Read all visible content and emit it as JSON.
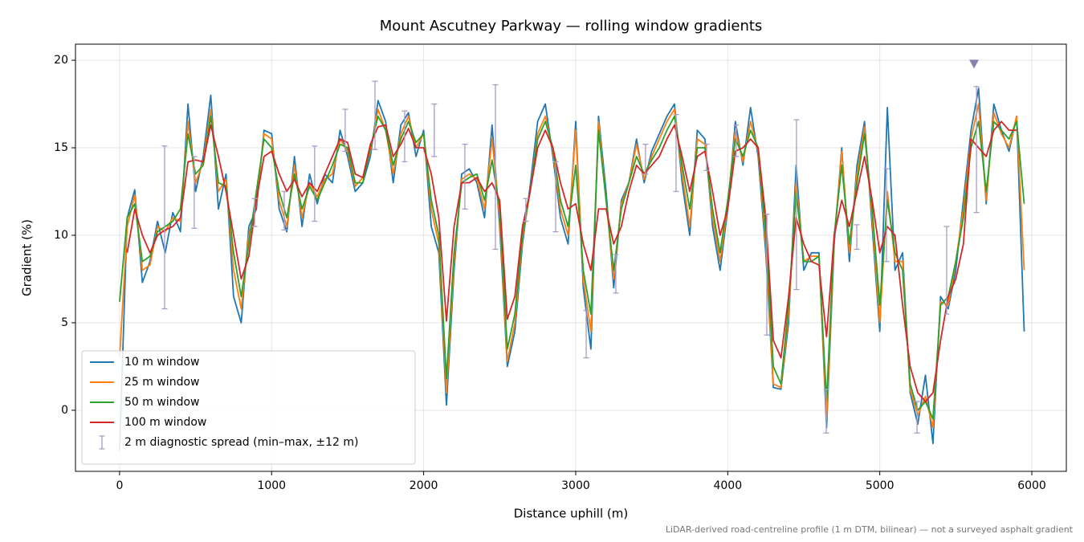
{
  "chart_data": {
    "type": "line",
    "title": "Mount Ascutney Parkway — rolling window gradients",
    "xlabel": "Distance uphill (m)",
    "ylabel": "Gradient (%)",
    "note": "LiDAR-derived road-centreline profile (1 m DTM, bilinear) — not a surveyed asphalt gradient",
    "xlim": [
      -290,
      6227
    ],
    "ylim": [
      -3.49,
      20.92
    ],
    "xticks": [
      0,
      1000,
      2000,
      3000,
      4000,
      5000,
      6000
    ],
    "yticks": [
      0,
      5,
      10,
      15,
      20
    ],
    "grid": true,
    "legend": "lower left",
    "x": [
      0,
      50,
      100,
      150,
      200,
      250,
      300,
      350,
      400,
      450,
      500,
      550,
      600,
      650,
      700,
      750,
      800,
      850,
      900,
      950,
      1000,
      1050,
      1100,
      1150,
      1200,
      1250,
      1300,
      1350,
      1400,
      1450,
      1500,
      1550,
      1600,
      1650,
      1700,
      1750,
      1800,
      1850,
      1900,
      1950,
      2000,
      2050,
      2100,
      2150,
      2200,
      2250,
      2300,
      2350,
      2400,
      2450,
      2500,
      2550,
      2600,
      2650,
      2700,
      2750,
      2800,
      2850,
      2900,
      2950,
      3000,
      3050,
      3100,
      3150,
      3200,
      3250,
      3300,
      3350,
      3400,
      3450,
      3500,
      3550,
      3600,
      3650,
      3700,
      3750,
      3800,
      3850,
      3900,
      3950,
      4000,
      4050,
      4100,
      4150,
      4200,
      4250,
      4300,
      4350,
      4400,
      4450,
      4500,
      4550,
      4600,
      4650,
      4700,
      4750,
      4800,
      4850,
      4900,
      4950,
      5000,
      5050,
      5100,
      5150,
      5200,
      5250,
      5300,
      5350,
      5400,
      5450,
      5500,
      5550,
      5600,
      5650,
      5700,
      5750,
      5800,
      5850,
      5900,
      5950
    ],
    "series": [
      {
        "name": "10 m window",
        "color": "#1f77b4",
        "values": [
          -2.3,
          11.0,
          12.6,
          7.3,
          8.5,
          10.8,
          9.0,
          11.3,
          10.2,
          17.5,
          12.5,
          14.5,
          18.0,
          11.5,
          13.5,
          6.5,
          5.0,
          10.5,
          11.5,
          16.0,
          15.8,
          11.5,
          10.2,
          14.5,
          10.5,
          13.5,
          11.8,
          13.5,
          13.0,
          16.0,
          14.5,
          12.5,
          13.0,
          14.5,
          17.7,
          16.5,
          13.0,
          16.3,
          17.0,
          14.5,
          16.0,
          10.5,
          9.0,
          0.3,
          8.0,
          13.5,
          13.8,
          13.0,
          11.0,
          16.3,
          10.5,
          2.5,
          4.5,
          9.5,
          12.8,
          16.5,
          17.5,
          14.5,
          11.0,
          9.5,
          16.5,
          7.0,
          3.5,
          16.8,
          12.5,
          7.0,
          12.0,
          13.0,
          15.5,
          13.0,
          14.8,
          15.8,
          16.8,
          17.5,
          13.0,
          10.0,
          16.0,
          15.5,
          10.5,
          8.0,
          11.5,
          16.5,
          14.0,
          17.3,
          14.5,
          9.0,
          1.3,
          1.2,
          5.0,
          14.0,
          8.0,
          9.0,
          9.0,
          -1.0,
          9.5,
          15.0,
          8.5,
          14.0,
          16.5,
          10.5,
          4.5,
          17.3,
          8.0,
          9.0,
          1.0,
          -0.8,
          2.0,
          -1.9,
          6.5,
          5.8,
          8.0,
          12.0,
          16.0,
          18.4,
          11.8,
          17.5,
          16.0,
          14.8,
          16.8,
          4.5
        ]
      },
      {
        "name": "25 m window",
        "color": "#ff7f0e",
        "values": [
          3.0,
          10.5,
          12.3,
          8.0,
          8.3,
          10.5,
          10.2,
          11.0,
          10.8,
          16.5,
          13.0,
          14.2,
          17.2,
          12.5,
          13.2,
          8.0,
          5.8,
          10.0,
          11.8,
          15.8,
          15.5,
          12.0,
          10.5,
          14.0,
          11.0,
          13.0,
          12.2,
          13.2,
          13.5,
          15.5,
          14.8,
          12.8,
          13.3,
          14.8,
          17.2,
          16.0,
          13.5,
          15.8,
          16.8,
          15.0,
          15.8,
          11.5,
          9.5,
          1.0,
          8.5,
          13.2,
          13.5,
          13.2,
          11.5,
          15.5,
          11.0,
          2.8,
          5.0,
          9.8,
          12.5,
          15.8,
          16.8,
          14.8,
          11.5,
          10.0,
          16.0,
          7.5,
          4.5,
          16.5,
          12.0,
          7.5,
          11.8,
          13.0,
          15.2,
          13.2,
          14.5,
          15.5,
          16.5,
          17.2,
          13.5,
          10.5,
          15.5,
          15.2,
          11.0,
          8.5,
          11.8,
          16.0,
          14.2,
          16.5,
          14.8,
          9.5,
          1.5,
          1.3,
          5.5,
          13.0,
          8.5,
          8.8,
          8.8,
          -0.5,
          9.8,
          14.8,
          9.0,
          13.5,
          16.2,
          11.0,
          5.0,
          12.5,
          8.5,
          8.5,
          1.2,
          -0.3,
          0.8,
          -1.0,
          6.2,
          6.0,
          8.5,
          11.5,
          15.5,
          17.5,
          12.0,
          17.0,
          15.8,
          15.0,
          16.8,
          8.0
        ]
      },
      {
        "name": "50 m window",
        "color": "#2ca02c",
        "values": [
          6.2,
          11.0,
          11.8,
          8.5,
          8.8,
          10.2,
          10.5,
          10.8,
          11.5,
          15.8,
          13.5,
          14.0,
          16.8,
          13.0,
          12.8,
          9.0,
          6.5,
          9.5,
          12.5,
          15.5,
          15.0,
          12.5,
          11.0,
          13.5,
          11.5,
          12.8,
          12.0,
          13.0,
          14.0,
          15.2,
          15.0,
          13.0,
          13.0,
          15.0,
          16.8,
          16.0,
          14.0,
          15.5,
          16.5,
          15.3,
          15.8,
          12.0,
          10.0,
          1.8,
          9.0,
          13.0,
          13.3,
          13.5,
          12.0,
          14.3,
          11.5,
          3.5,
          5.5,
          10.0,
          12.5,
          15.5,
          16.5,
          15.0,
          12.0,
          10.5,
          14.0,
          8.0,
          5.5,
          16.0,
          12.0,
          8.0,
          11.5,
          13.0,
          14.5,
          13.5,
          14.3,
          15.0,
          16.0,
          16.8,
          14.0,
          11.5,
          15.0,
          15.0,
          11.5,
          9.0,
          12.0,
          15.5,
          14.5,
          16.0,
          15.0,
          10.0,
          2.5,
          1.5,
          6.0,
          12.5,
          8.5,
          8.5,
          8.8,
          0.5,
          10.0,
          14.0,
          9.5,
          13.0,
          15.8,
          11.5,
          6.0,
          12.0,
          9.0,
          8.0,
          1.5,
          0.0,
          0.5,
          -0.5,
          6.0,
          6.5,
          8.5,
          11.0,
          15.0,
          16.5,
          12.5,
          16.5,
          16.0,
          15.5,
          16.5,
          11.8
        ]
      },
      {
        "name": "100 m window",
        "color": "#d62728",
        "values": [
          null,
          9.0,
          11.5,
          10.0,
          9.0,
          10.0,
          10.3,
          10.5,
          11.0,
          14.2,
          14.3,
          14.2,
          16.3,
          14.5,
          12.5,
          10.0,
          7.5,
          8.8,
          12.0,
          14.5,
          14.8,
          13.5,
          12.5,
          13.2,
          12.2,
          13.0,
          12.5,
          13.5,
          14.5,
          15.5,
          15.3,
          13.5,
          13.3,
          15.2,
          16.2,
          16.3,
          14.5,
          15.2,
          16.1,
          15.0,
          15.0,
          13.5,
          11.0,
          5.1,
          10.5,
          13.0,
          13.0,
          13.3,
          12.5,
          13.0,
          12.0,
          5.2,
          6.5,
          10.5,
          12.5,
          15.0,
          16.0,
          15.0,
          13.0,
          11.5,
          11.8,
          9.5,
          8.0,
          11.5,
          11.5,
          9.5,
          10.5,
          12.5,
          14.0,
          13.5,
          14.0,
          14.5,
          15.5,
          16.3,
          14.5,
          12.5,
          14.5,
          14.8,
          12.5,
          10.0,
          11.5,
          14.8,
          15.0,
          15.5,
          15.0,
          11.0,
          4.0,
          3.0,
          6.5,
          11.0,
          9.5,
          8.5,
          8.3,
          4.2,
          10.0,
          12.0,
          10.5,
          12.5,
          14.5,
          12.0,
          9.0,
          10.5,
          10.0,
          6.0,
          2.5,
          1.0,
          0.5,
          1.0,
          4.0,
          6.5,
          7.5,
          9.5,
          15.5,
          15.0,
          14.5,
          16.0,
          16.5,
          16.0,
          16.0,
          null
        ]
      }
    ],
    "errorbars": {
      "name": "2 m diagnostic spread (min–max, ±12 m)",
      "color": "#a99cc4",
      "x": [
        296,
        491,
        888,
        1083,
        1283,
        1484,
        1680,
        1875,
        2070,
        2271,
        2472,
        2672,
        2868,
        3069,
        3264,
        3459,
        3660,
        3861,
        4056,
        4257,
        4452,
        4648,
        4849,
        5044,
        5245,
        5440,
        5636
      ],
      "low": [
        5.8,
        10.4,
        10.5,
        10.3,
        10.8,
        14.8,
        14.9,
        14.2,
        14.5,
        11.5,
        9.2,
        10.8,
        10.2,
        3.0,
        6.7,
        13.5,
        12.5,
        13.7,
        14.5,
        4.3,
        6.9,
        -1.3,
        9.2,
        8.5,
        -1.3,
        5.5,
        11.3
      ],
      "high": [
        15.1,
        14.5,
        12.1,
        12.5,
        15.1,
        17.2,
        18.8,
        17.1,
        17.5,
        15.2,
        18.6,
        12.1,
        14.2,
        5.7,
        8.9,
        15.2,
        16.9,
        15.2,
        16.3,
        11.2,
        16.6,
        1.2,
        10.6,
        13.8,
        0.5,
        10.5,
        18.5
      ]
    },
    "peak_marker": {
      "x": 5620,
      "y": 19.8,
      "color": "#8c7fb0"
    }
  }
}
